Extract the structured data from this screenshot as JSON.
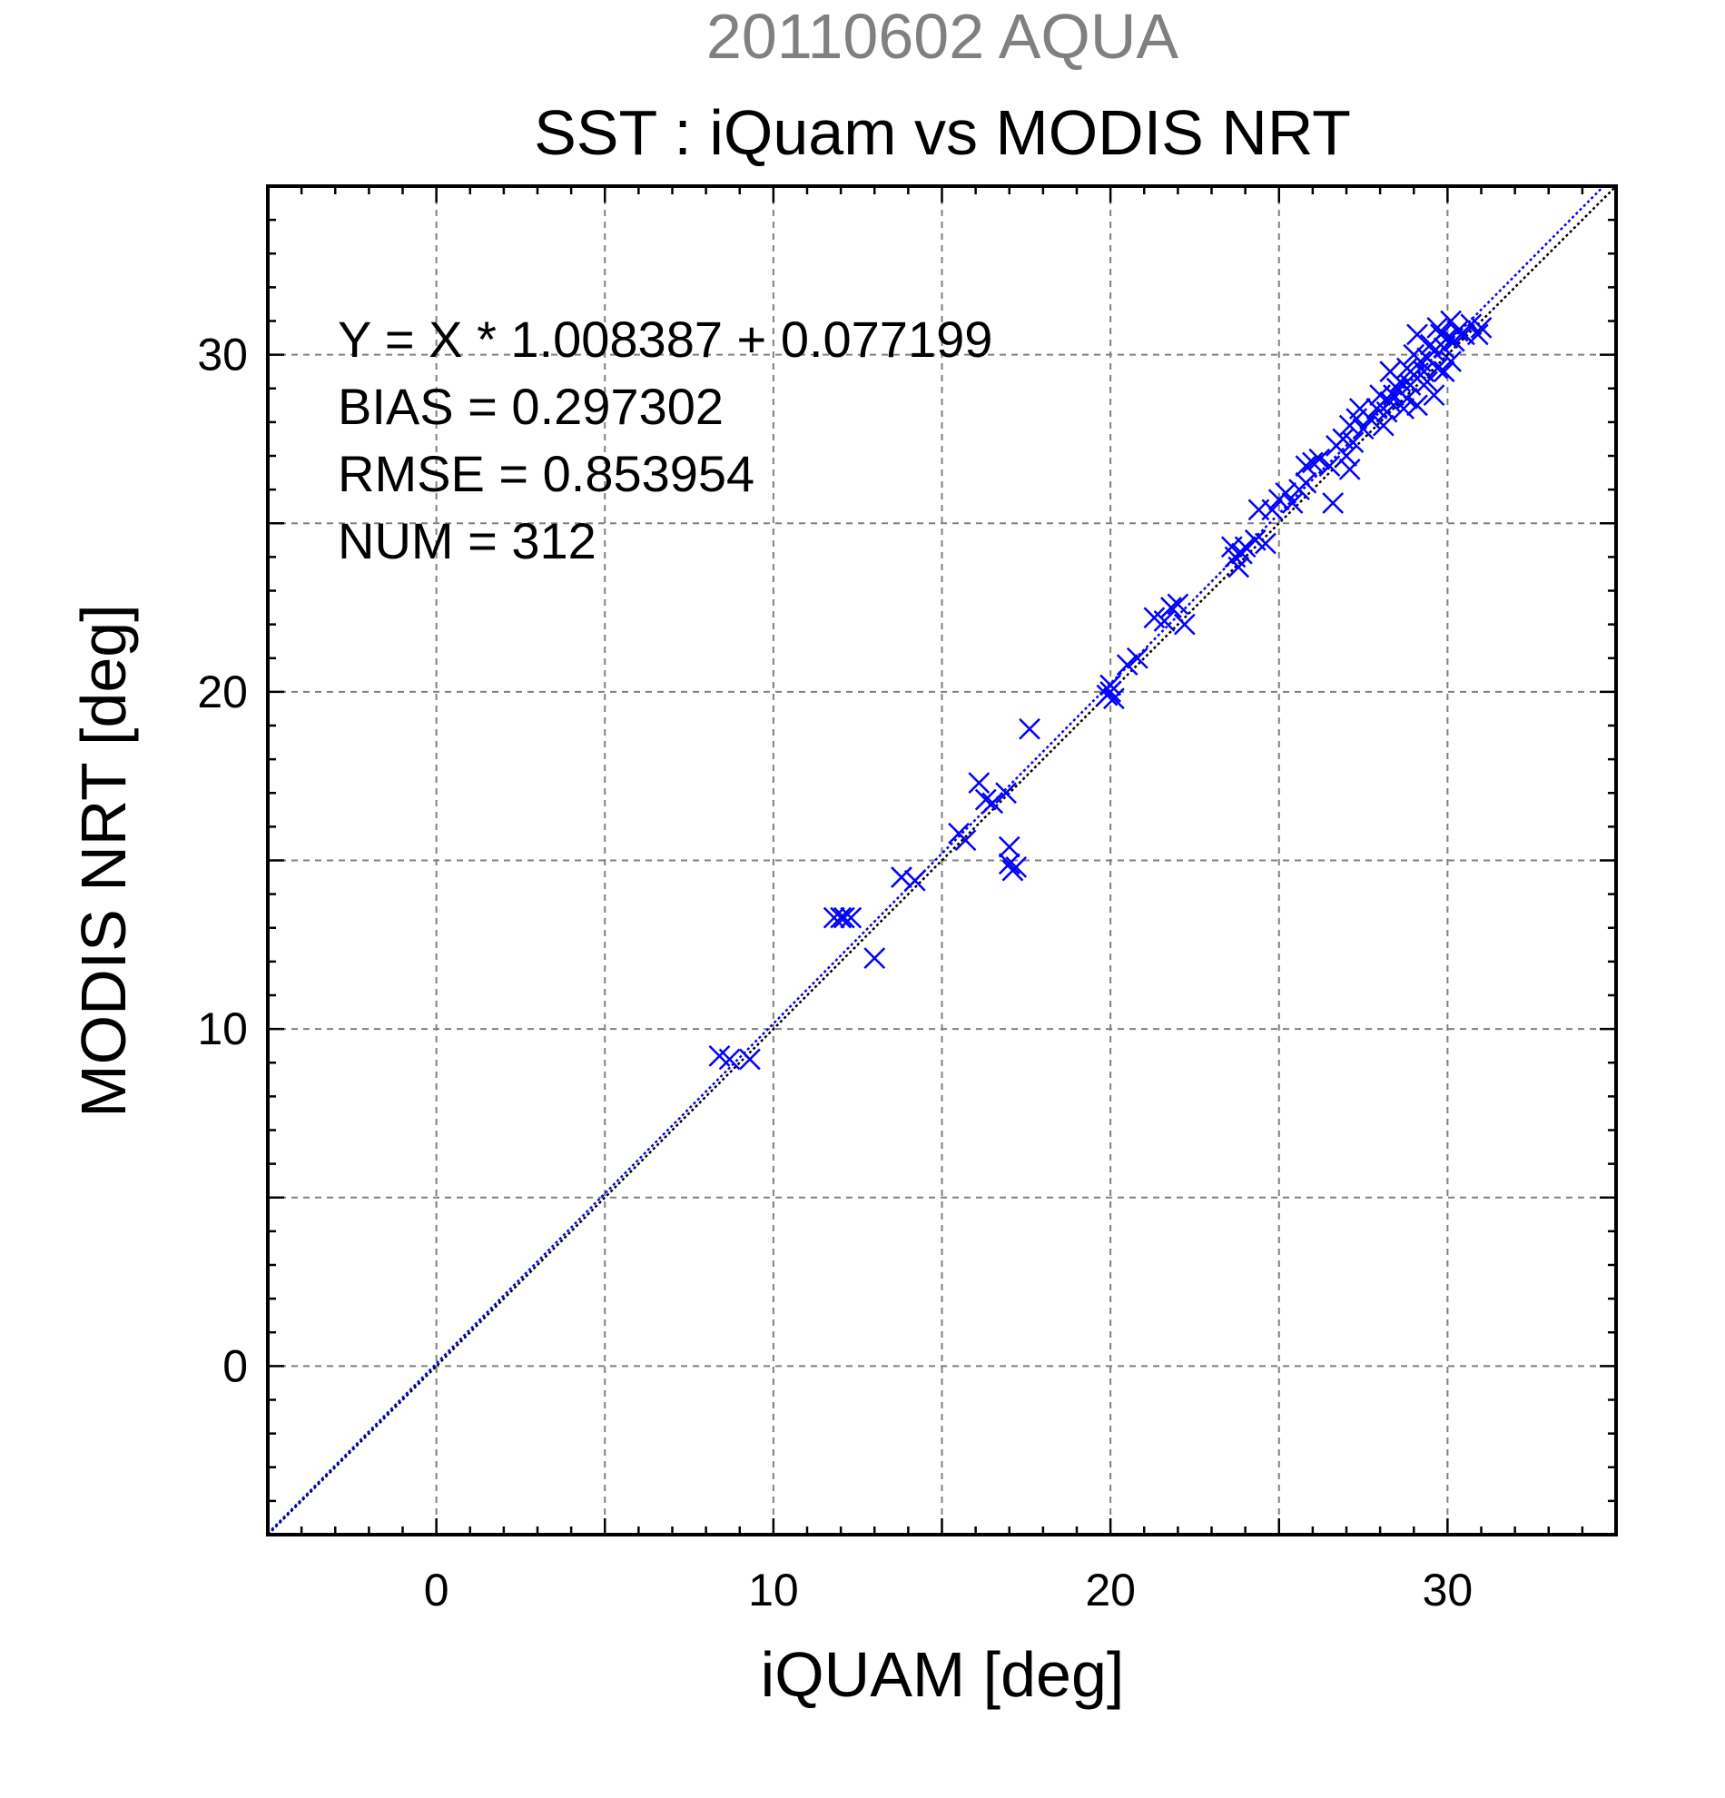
{
  "chart_data": {
    "type": "scatter",
    "suptitle": "20110602 AQUA",
    "title": "SST : iQuam vs MODIS NRT",
    "xlabel": "iQUAM [deg]",
    "ylabel": "MODIS NRT [deg]",
    "xlim": [
      -5,
      35
    ],
    "ylim": [
      -5,
      35
    ],
    "xticks": [
      0,
      10,
      20,
      30
    ],
    "yticks": [
      0,
      10,
      20,
      30
    ],
    "xtick_labels": [
      "0",
      "10",
      "20",
      "30"
    ],
    "ytick_labels": [
      "0",
      "10",
      "20",
      "30"
    ],
    "grid": true,
    "grid_step": 5,
    "minor_tick_step": 1,
    "stats": {
      "equation": "Y = X * 1.008387 + 0.077199",
      "bias": "BIAS = 0.297302",
      "rmse": "RMSE = 0.853954",
      "num": "NUM = 312"
    },
    "fit_line": {
      "slope": 1.008387,
      "intercept": 0.077199,
      "color": "#0000ff"
    },
    "identity_line": {
      "slope": 1,
      "intercept": 0,
      "color": "#000000"
    },
    "series": [
      {
        "marker": "x",
        "color": "#0000ff",
        "points": [
          [
            8.4,
            9.2
          ],
          [
            8.7,
            9.1
          ],
          [
            9.3,
            9.1
          ],
          [
            11.8,
            13.3
          ],
          [
            12.0,
            13.3
          ],
          [
            12.1,
            13.3
          ],
          [
            12.3,
            13.3
          ],
          [
            13.0,
            12.1
          ],
          [
            13.8,
            14.5
          ],
          [
            14.2,
            14.4
          ],
          [
            15.5,
            15.8
          ],
          [
            15.7,
            15.6
          ],
          [
            16.1,
            17.3
          ],
          [
            16.3,
            16.8
          ],
          [
            16.5,
            16.7
          ],
          [
            16.9,
            17.0
          ],
          [
            17.0,
            15.4
          ],
          [
            17.0,
            14.9
          ],
          [
            17.1,
            14.7
          ],
          [
            17.2,
            14.8
          ],
          [
            17.6,
            18.9
          ],
          [
            19.9,
            19.9
          ],
          [
            20.0,
            20.0
          ],
          [
            20.1,
            19.8
          ],
          [
            20.0,
            20.2
          ],
          [
            20.5,
            20.8
          ],
          [
            20.8,
            21.0
          ],
          [
            21.3,
            22.2
          ],
          [
            21.6,
            22.1
          ],
          [
            21.8,
            22.5
          ],
          [
            22.0,
            22.6
          ],
          [
            22.2,
            22.0
          ],
          [
            23.6,
            24.3
          ],
          [
            23.7,
            24.0
          ],
          [
            23.8,
            23.7
          ],
          [
            23.9,
            24.1
          ],
          [
            24.0,
            24.3
          ],
          [
            24.3,
            24.5
          ],
          [
            24.6,
            24.4
          ],
          [
            24.4,
            25.4
          ],
          [
            24.8,
            25.4
          ],
          [
            25.0,
            25.7
          ],
          [
            25.2,
            25.9
          ],
          [
            25.4,
            25.6
          ],
          [
            25.6,
            26.0
          ],
          [
            25.8,
            26.2
          ],
          [
            25.8,
            26.7
          ],
          [
            26.0,
            26.8
          ],
          [
            26.2,
            26.9
          ],
          [
            26.5,
            26.7
          ],
          [
            26.6,
            25.6
          ],
          [
            26.7,
            27.3
          ],
          [
            26.9,
            27.5
          ],
          [
            27.0,
            27.0
          ],
          [
            27.1,
            26.6
          ],
          [
            27.2,
            27.4
          ],
          [
            27.1,
            27.9
          ],
          [
            27.3,
            28.1
          ],
          [
            27.4,
            28.4
          ],
          [
            27.5,
            27.8
          ],
          [
            27.7,
            28.1
          ],
          [
            27.9,
            28.4
          ],
          [
            28.0,
            28.8
          ],
          [
            28.1,
            27.9
          ],
          [
            28.2,
            28.3
          ],
          [
            28.3,
            28.6
          ],
          [
            28.4,
            28.8
          ],
          [
            28.5,
            29.0
          ],
          [
            28.6,
            29.2
          ],
          [
            28.7,
            28.4
          ],
          [
            28.8,
            28.7
          ],
          [
            28.9,
            29.1
          ],
          [
            29.0,
            29.4
          ],
          [
            29.1,
            28.5
          ],
          [
            29.2,
            29.8
          ],
          [
            29.3,
            29.5
          ],
          [
            29.4,
            29.9
          ],
          [
            29.5,
            30.3
          ],
          [
            29.6,
            30.1
          ],
          [
            29.7,
            29.6
          ],
          [
            29.8,
            30.6
          ],
          [
            29.9,
            30.2
          ],
          [
            30.0,
            30.5
          ],
          [
            30.1,
            29.8
          ],
          [
            30.2,
            30.4
          ],
          [
            30.3,
            30.7
          ],
          [
            30.5,
            30.6
          ],
          [
            30.7,
            30.9
          ],
          [
            30.9,
            30.6
          ],
          [
            31.0,
            30.8
          ],
          [
            29.0,
            30.0
          ],
          [
            28.8,
            29.6
          ],
          [
            29.4,
            29.2
          ],
          [
            29.6,
            28.8
          ],
          [
            29.9,
            29.5
          ],
          [
            30.1,
            31.0
          ],
          [
            28.3,
            29.5
          ],
          [
            29.1,
            30.6
          ],
          [
            29.7,
            30.8
          ]
        ]
      }
    ]
  }
}
